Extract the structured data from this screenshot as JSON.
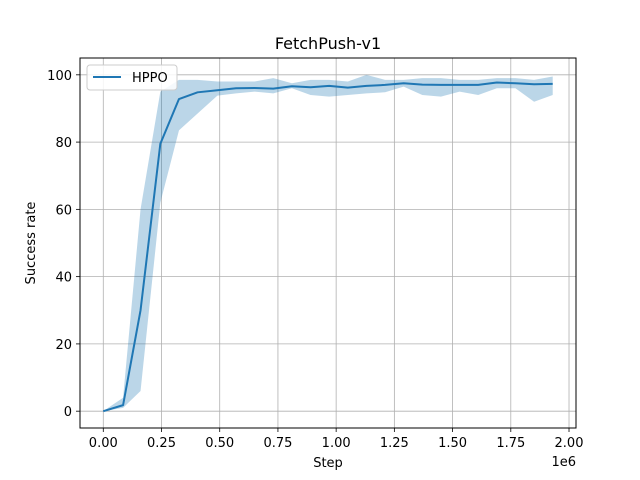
{
  "chart_data": {
    "type": "line",
    "title": "FetchPush-v1",
    "xlabel": "Step",
    "ylabel": "Success rate",
    "x_offset_label": "1e6",
    "xlim": [
      -100000,
      2030000
    ],
    "ylim": [
      -5,
      105
    ],
    "x_ticks": [
      0,
      250000,
      500000,
      750000,
      1000000,
      1250000,
      1500000,
      1750000,
      2000000
    ],
    "x_tick_labels": [
      "0.00",
      "0.25",
      "0.50",
      "0.75",
      "1.00",
      "1.25",
      "1.50",
      "1.75",
      "2.00"
    ],
    "y_ticks": [
      0,
      20,
      40,
      60,
      80,
      100
    ],
    "y_tick_labels": [
      "0",
      "20",
      "40",
      "60",
      "80",
      "100"
    ],
    "grid": true,
    "legend_position": "top-left",
    "series": [
      {
        "name": "HPPO",
        "color": "#1f77b4",
        "band_color": "#1f77b4",
        "x": [
          0,
          85000,
          160000,
          245000,
          325000,
          405000,
          490000,
          570000,
          650000,
          730000,
          810000,
          890000,
          970000,
          1050000,
          1130000,
          1210000,
          1290000,
          1370000,
          1450000,
          1530000,
          1610000,
          1690000,
          1770000,
          1850000,
          1930000
        ],
        "y": [
          0,
          1.8,
          30,
          79.5,
          92.8,
          94.8,
          95.4,
          96.0,
          96.1,
          95.9,
          96.6,
          96.3,
          96.7,
          96.2,
          96.7,
          97.0,
          97.5,
          97.1,
          97.0,
          97.0,
          97.0,
          97.7,
          97.5,
          97.2,
          97.3
        ],
        "lower": [
          0,
          1.0,
          6.0,
          62.0,
          83.5,
          88.5,
          93.8,
          94.5,
          95.0,
          94.5,
          96.0,
          94.0,
          93.5,
          94.0,
          94.5,
          94.8,
          96.5,
          94.0,
          93.5,
          95.0,
          94.0,
          96.0,
          96.0,
          92.0,
          94.0
        ],
        "upper": [
          0,
          4.0,
          60.0,
          95.0,
          98.5,
          98.5,
          98.0,
          98.0,
          98.0,
          99.0,
          97.5,
          98.5,
          98.5,
          98.0,
          100.0,
          98.5,
          98.5,
          99.0,
          99.0,
          98.5,
          98.5,
          99.0,
          99.0,
          98.5,
          99.5
        ]
      }
    ]
  }
}
